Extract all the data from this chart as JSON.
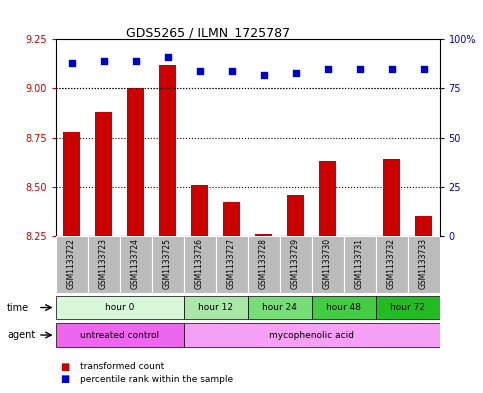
{
  "title": "GDS5265 / ILMN_1725787",
  "samples": [
    "GSM1133722",
    "GSM1133723",
    "GSM1133724",
    "GSM1133725",
    "GSM1133726",
    "GSM1133727",
    "GSM1133728",
    "GSM1133729",
    "GSM1133730",
    "GSM1133731",
    "GSM1133732",
    "GSM1133733"
  ],
  "bar_values": [
    8.78,
    8.88,
    9.0,
    9.12,
    8.51,
    8.42,
    8.26,
    8.46,
    8.63,
    8.25,
    8.64,
    8.35
  ],
  "dot_values": [
    88,
    89,
    89,
    91,
    84,
    84,
    82,
    83,
    85,
    85,
    85,
    85
  ],
  "ylim_left": [
    8.25,
    9.25
  ],
  "ylim_right": [
    0,
    100
  ],
  "yticks_left": [
    8.25,
    8.5,
    8.75,
    9.0,
    9.25
  ],
  "yticks_right": [
    0,
    25,
    50,
    75,
    100
  ],
  "ytick_labels_right": [
    "0",
    "25",
    "50",
    "75",
    "100%"
  ],
  "hgrid_vals": [
    8.5,
    8.75,
    9.0
  ],
  "time_groups": [
    {
      "label": "hour 0",
      "start": 0,
      "end": 4,
      "color": "#d9f7d9"
    },
    {
      "label": "hour 12",
      "start": 4,
      "end": 6,
      "color": "#aae8aa"
    },
    {
      "label": "hour 24",
      "start": 6,
      "end": 8,
      "color": "#77dd77"
    },
    {
      "label": "hour 48",
      "start": 8,
      "end": 10,
      "color": "#44cc44"
    },
    {
      "label": "hour 72",
      "start": 10,
      "end": 12,
      "color": "#22bb22"
    }
  ],
  "agent_groups": [
    {
      "label": "untreated control",
      "start": 0,
      "end": 4,
      "color": "#ee66ee"
    },
    {
      "label": "mycophenolic acid",
      "start": 4,
      "end": 12,
      "color": "#f5a0f5"
    }
  ],
  "bar_color": "#cc0000",
  "dot_color": "#0000cc",
  "background_color": "#ffffff",
  "sample_bg_color": "#bbbbbb",
  "legend_items": [
    {
      "label": "transformed count",
      "color": "#cc0000"
    },
    {
      "label": "percentile rank within the sample",
      "color": "#0000cc"
    }
  ]
}
